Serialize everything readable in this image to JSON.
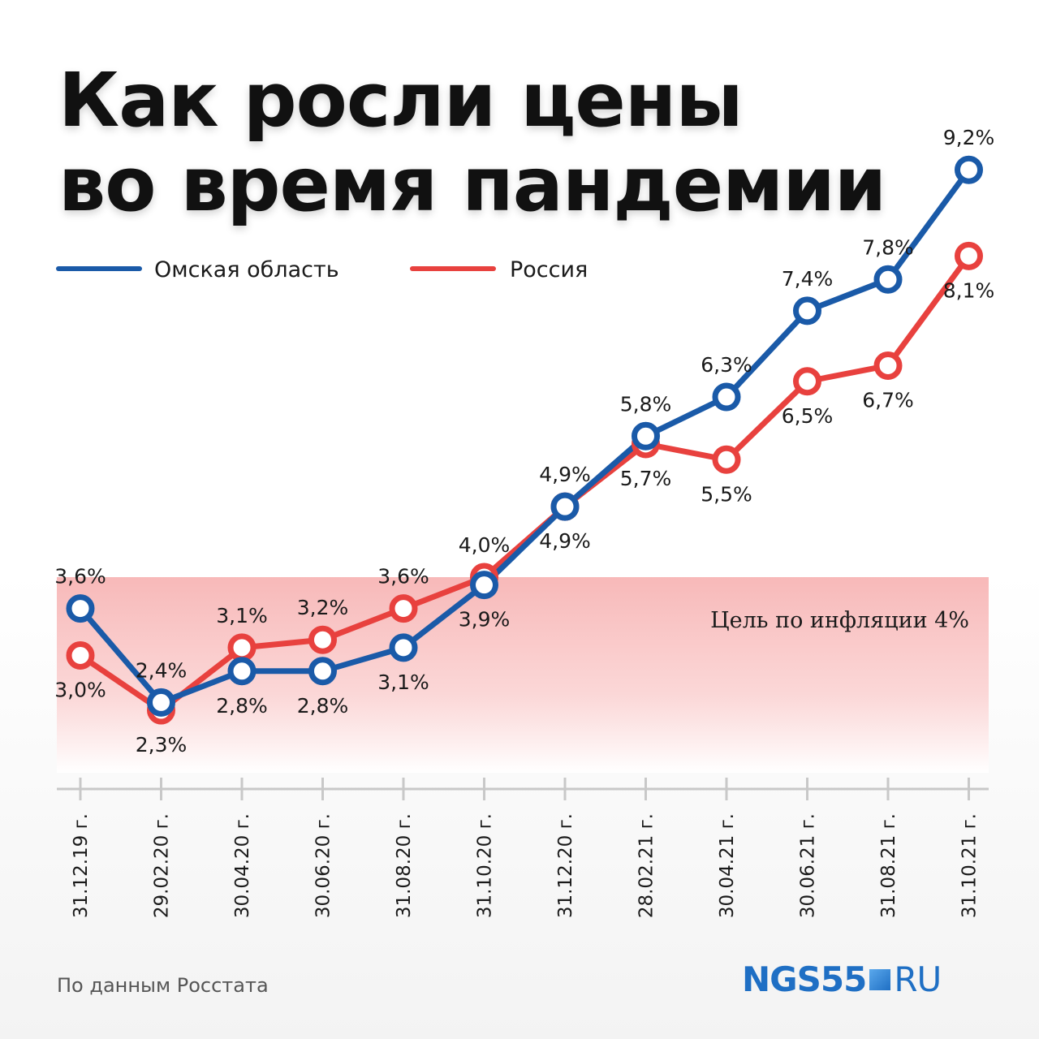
{
  "title": {
    "line1": "Как росли цены",
    "line2": "во время пандемии"
  },
  "legend": [
    {
      "name": "Омская область",
      "color": "#1a5aa8"
    },
    {
      "name": "Россия",
      "color": "#e8413e"
    }
  ],
  "chart_data": {
    "type": "line",
    "categories": [
      "31.12.19 г.",
      "29.02.20 г.",
      "30.04.20 г.",
      "30.06.20 г.",
      "31.08.20 г.",
      "31.10.20 г.",
      "31.12.20 г.",
      "28.02.21 г.",
      "30.04.21 г.",
      "30.06.21 г.",
      "31.08.21 г.",
      "31.10.21 г."
    ],
    "series": [
      {
        "name": "Омская область",
        "color": "#1a5aa8",
        "values": [
          3.6,
          2.4,
          2.8,
          2.8,
          3.1,
          3.9,
          4.9,
          5.8,
          6.3,
          7.4,
          7.8,
          9.2
        ],
        "labels": [
          "3,6%",
          "2,4%",
          "2,8%",
          "2,8%",
          "3,1%",
          "3,9%",
          "4,9%",
          "5,8%",
          "6,3%",
          "7,4%",
          "7,8%",
          "9,2%"
        ]
      },
      {
        "name": "Россия",
        "color": "#e8413e",
        "values": [
          3.0,
          2.3,
          3.1,
          3.2,
          3.6,
          4.0,
          4.9,
          5.7,
          5.5,
          6.5,
          6.7,
          8.1
        ],
        "labels": [
          "3,0%",
          "2,3%",
          "3,1%",
          "3,2%",
          "3,6%",
          "4,0%",
          "4,9%",
          "5,7%",
          "5,5%",
          "6,5%",
          "6,7%",
          "8,1%"
        ]
      }
    ],
    "target": {
      "value": 4,
      "label": "Цель по инфляции 4%",
      "color": "#f7b5b5"
    },
    "title": "Как росли цены во время пандемии"
  },
  "source": "По данным Росстата",
  "logo": {
    "part1": "NGS55",
    "part2": "RU"
  }
}
